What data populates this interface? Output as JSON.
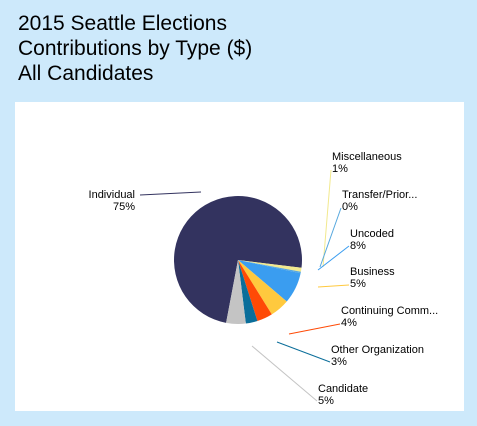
{
  "title": {
    "line1": "2015 Seattle Elections",
    "line2": "Contributions by Type ($)",
    "line3": "All Candidates"
  },
  "colors": {
    "page_background": "#cde9fb",
    "panel_background": "#ffffff"
  },
  "chart_data": {
    "type": "pie",
    "title": "2015 Seattle Elections Contributions by Type ($) All Candidates",
    "unit": "%",
    "legend": "none",
    "slices": [
      {
        "label": "Individual",
        "percent_label": "75%",
        "value": 75,
        "color": "#33335f"
      },
      {
        "label": "Miscellaneous",
        "percent_label": "1%",
        "value": 1,
        "color": "#f2e98e"
      },
      {
        "label": "Transfer/Prior...",
        "percent_label": "0%",
        "value": 0.4,
        "color": "#57a8de"
      },
      {
        "label": "Uncoded",
        "percent_label": "8%",
        "value": 8,
        "color": "#3a9df0"
      },
      {
        "label": "Business",
        "percent_label": "5%",
        "value": 5,
        "color": "#ffc93e"
      },
      {
        "label": "Continuing Comm...",
        "percent_label": "4%",
        "value": 4,
        "color": "#ff4a06"
      },
      {
        "label": "Other Organization",
        "percent_label": "3%",
        "value": 3,
        "color": "#0b6e9a"
      },
      {
        "label": "Candidate",
        "percent_label": "5%",
        "value": 5,
        "color": "#c4c4c4"
      }
    ]
  }
}
